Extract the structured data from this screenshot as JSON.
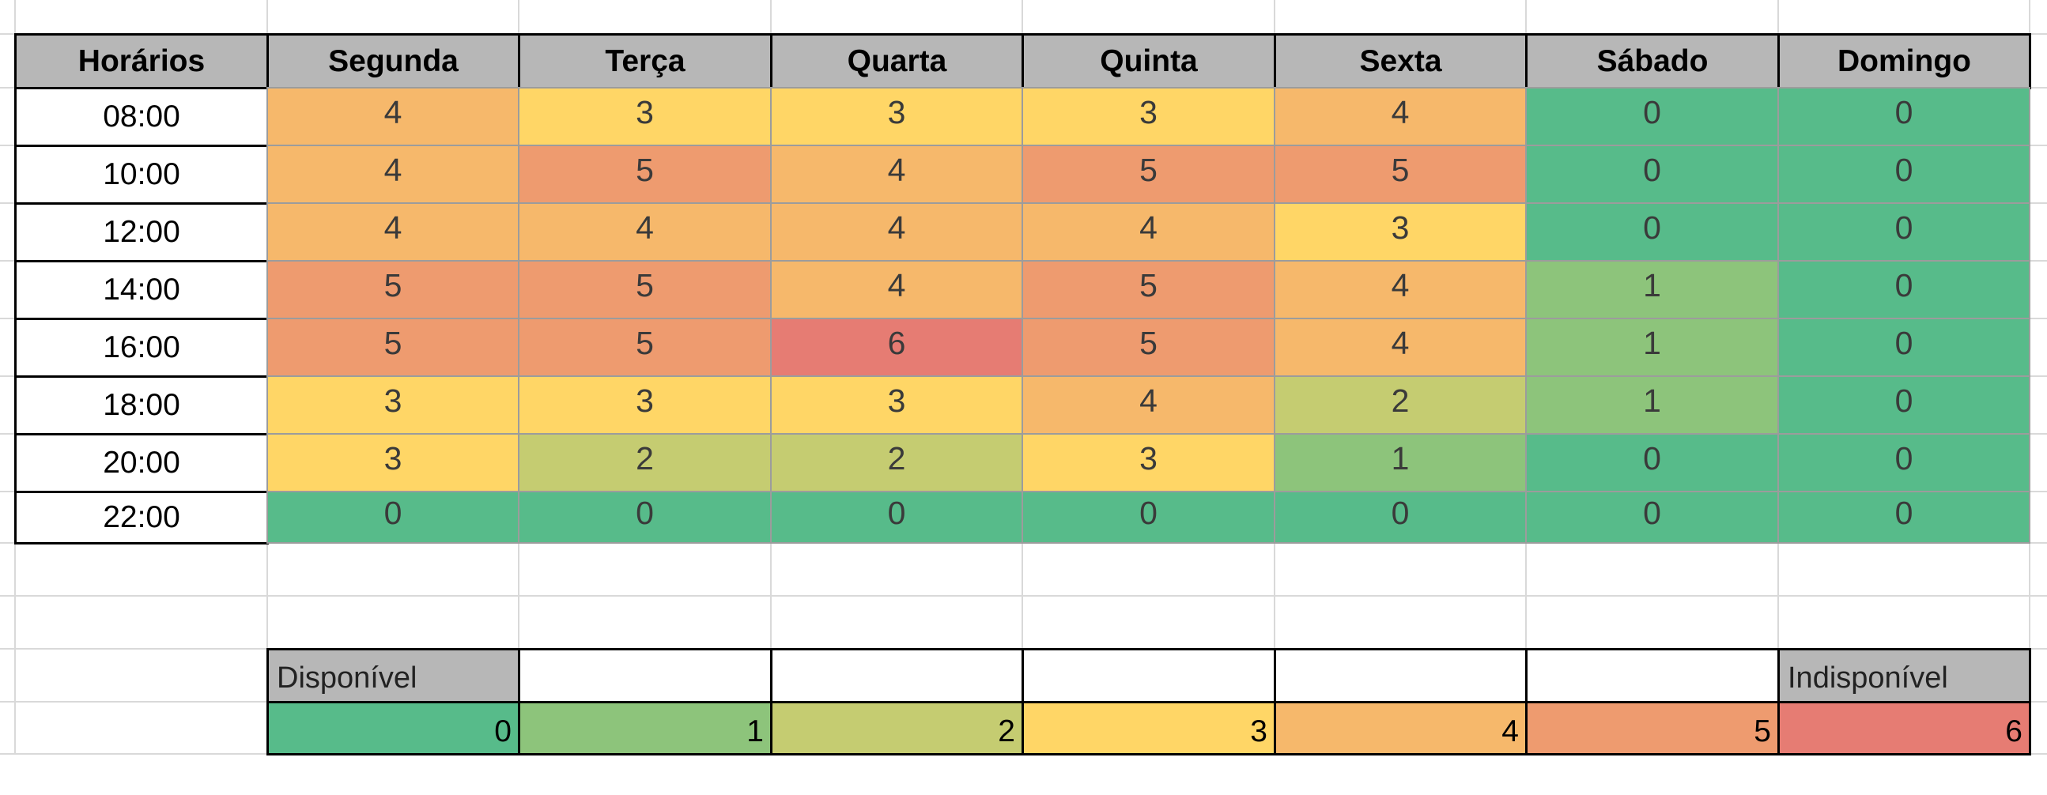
{
  "header": {
    "corner": "Horários",
    "days": [
      "Segunda",
      "Terça",
      "Quarta",
      "Quinta",
      "Sexta",
      "Sábado",
      "Domingo"
    ]
  },
  "rows": [
    {
      "time": "08:00",
      "values": [
        4,
        3,
        3,
        3,
        4,
        0,
        0
      ]
    },
    {
      "time": "10:00",
      "values": [
        4,
        5,
        4,
        5,
        5,
        0,
        0
      ]
    },
    {
      "time": "12:00",
      "values": [
        4,
        4,
        4,
        4,
        3,
        0,
        0
      ]
    },
    {
      "time": "14:00",
      "values": [
        5,
        5,
        4,
        5,
        4,
        1,
        0
      ]
    },
    {
      "time": "16:00",
      "values": [
        5,
        5,
        6,
        5,
        4,
        1,
        0
      ]
    },
    {
      "time": "18:00",
      "values": [
        3,
        3,
        3,
        4,
        2,
        1,
        0
      ]
    },
    {
      "time": "20:00",
      "values": [
        3,
        2,
        2,
        3,
        1,
        0,
        0
      ]
    },
    {
      "time": "22:00",
      "values": [
        0,
        0,
        0,
        0,
        0,
        0,
        0
      ]
    }
  ],
  "legend": {
    "available_label": "Disponível",
    "unavailable_label": "Indisponível",
    "scale": [
      0,
      1,
      2,
      3,
      4,
      5,
      6
    ]
  },
  "colors": {
    "0": "#57bb8a",
    "1": "#8dc47b",
    "2": "#c5cc71",
    "3": "#ffd666",
    "4": "#f6b86b",
    "5": "#ee9b6f",
    "6": "#e67c73"
  }
}
